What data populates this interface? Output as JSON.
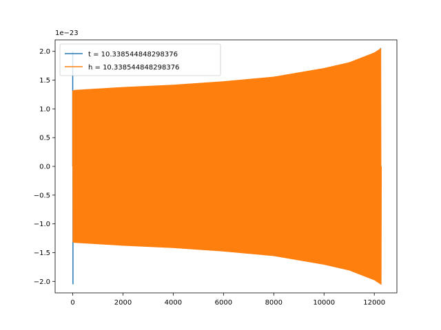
{
  "chart_data": {
    "type": "line",
    "offset_label": "1e−23",
    "xlim": [
      -700,
      12900
    ],
    "ylim": [
      -2.2,
      2.2
    ],
    "x_ticks": [
      0,
      2000,
      4000,
      6000,
      8000,
      10000,
      12000
    ],
    "x_tick_labels": [
      "0",
      "2000",
      "4000",
      "6000",
      "8000",
      "10000",
      "12000"
    ],
    "y_ticks": [
      -2.0,
      -1.5,
      -1.0,
      -0.5,
      0.0,
      0.5,
      1.0,
      1.5,
      2.0
    ],
    "y_tick_labels": [
      "−2.0",
      "−1.5",
      "−1.0",
      "−0.5",
      "0.0",
      "0.5",
      "1.0",
      "1.5",
      "2.0"
    ],
    "legend_position": "top-left",
    "series": [
      {
        "name": "t = 10.338544848298376",
        "color": "#1f77b4",
        "x": [
          0,
          10,
          12250,
          12260
        ],
        "y": [
          2.0,
          -2.05,
          2.06,
          -2.05
        ]
      },
      {
        "name": "h = 10.338544848298376",
        "color": "#ff7f0e",
        "x": [
          0,
          100,
          2000,
          4000,
          6000,
          8000,
          10000,
          11000,
          12000,
          12280
        ],
        "y": [
          1.32,
          1.33,
          1.38,
          1.42,
          1.48,
          1.56,
          1.71,
          1.81,
          1.98,
          2.06
        ]
      }
    ]
  }
}
